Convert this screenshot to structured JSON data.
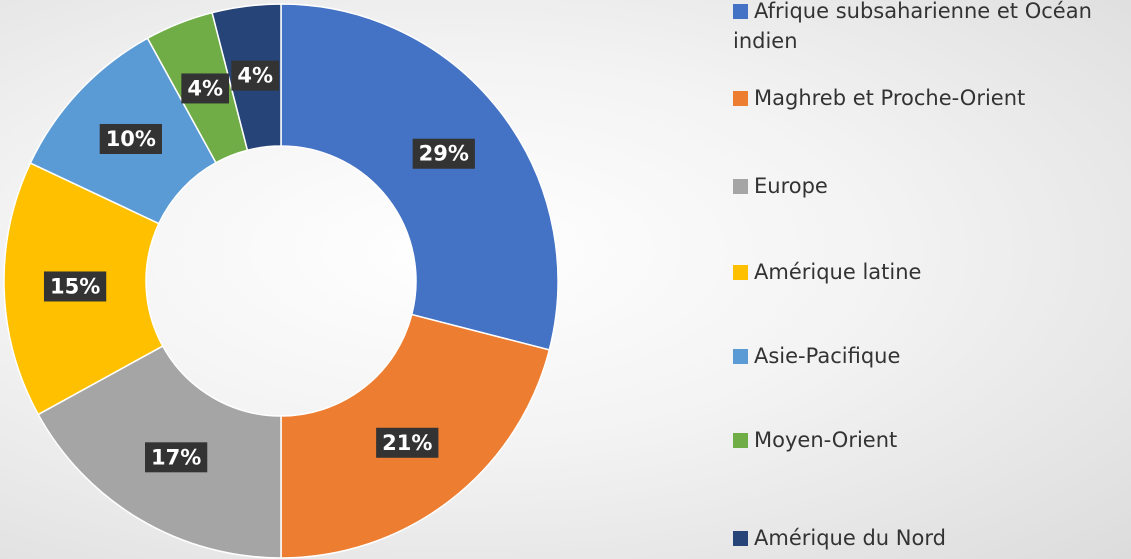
{
  "chart_data": {
    "type": "donut",
    "categories": [
      "Afrique subsaharienne et Océan indien",
      "Maghreb et Proche-Orient",
      "Europe",
      "Amérique latine",
      "Asie-Pacifique",
      "Moyen-Orient",
      "Amérique du Nord"
    ],
    "values": [
      29,
      21,
      17,
      15,
      10,
      4,
      4
    ],
    "value_labels": [
      "29%",
      "21%",
      "17%",
      "15%",
      "10%",
      "4%",
      "4%"
    ],
    "colors": [
      "#4472c4",
      "#ed7d31",
      "#a5a5a5",
      "#ffc000",
      "#5b9bd5",
      "#70ad47",
      "#264478"
    ],
    "legend": "right"
  }
}
